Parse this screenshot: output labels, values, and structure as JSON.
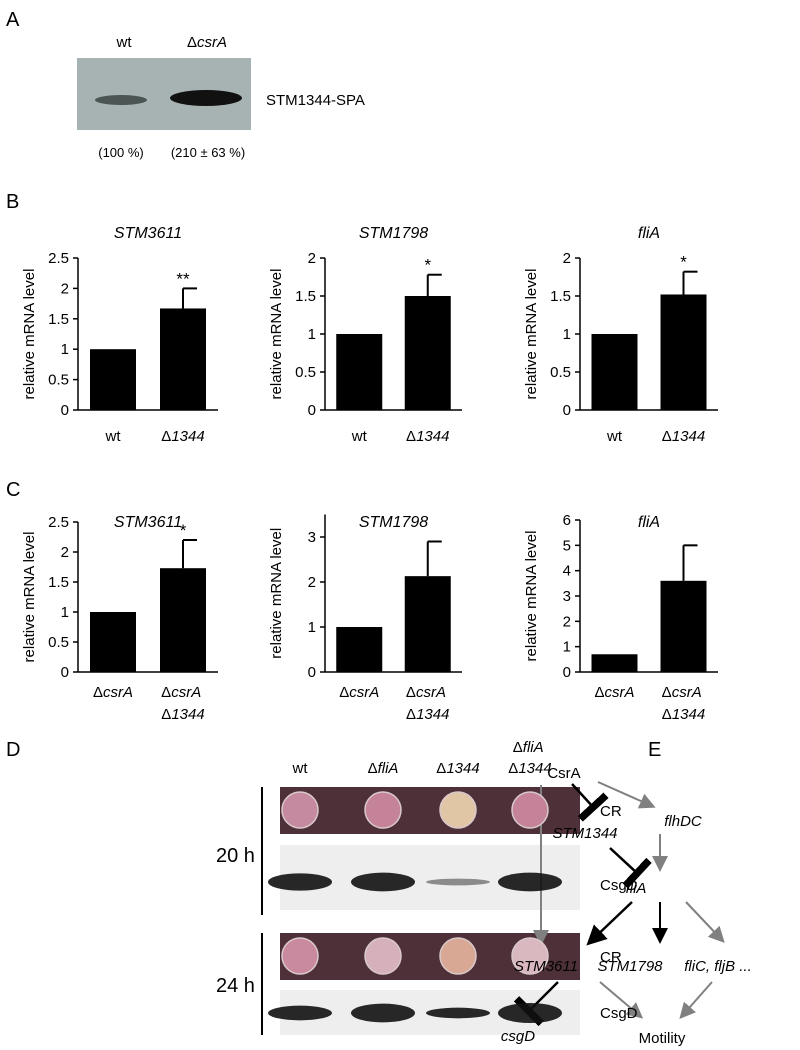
{
  "panel_letters": [
    "A",
    "B",
    "C",
    "D",
    "E"
  ],
  "panel_a": {
    "lanes": [
      "wt",
      "ΔcsrA"
    ],
    "band_label": "STM1344-SPA",
    "quantification": [
      "(100 %)",
      "(210 ± 63 %)"
    ]
  },
  "chart_data": [
    {
      "type": "bar",
      "title": "STM3611",
      "y_label": "relative mRNA level",
      "categories": [
        "wt",
        "Δ1344"
      ],
      "values": [
        1,
        1.67
      ],
      "errors": [
        null,
        0.33
      ],
      "significance": [
        null,
        "**"
      ],
      "color": "#000000",
      "ylim": [
        0,
        2.5
      ],
      "yticks": [
        0,
        0.5,
        1,
        1.5,
        2,
        2.5
      ]
    },
    {
      "type": "bar",
      "title": "STM1798",
      "y_label": "relative mRNA level",
      "categories": [
        "wt",
        "Δ1344"
      ],
      "values": [
        1,
        1.5
      ],
      "errors": [
        null,
        0.28
      ],
      "significance": [
        null,
        "*"
      ],
      "color": "#000000",
      "ylim": [
        0,
        2
      ],
      "yticks": [
        0,
        0.5,
        1,
        1.5,
        2
      ]
    },
    {
      "type": "bar",
      "title": "fliA",
      "y_label": "relative mRNA level",
      "categories": [
        "wt",
        "Δ1344"
      ],
      "values": [
        1,
        1.52
      ],
      "errors": [
        null,
        0.3
      ],
      "significance": [
        null,
        "*"
      ],
      "color": "#000000",
      "ylim": [
        0,
        2
      ],
      "yticks": [
        0,
        0.5,
        1,
        1.5,
        2
      ]
    },
    {
      "type": "bar",
      "title": "STM3611",
      "y_label": "relative mRNA level",
      "categories": [
        "ΔcsrA",
        "ΔcsrA Δ1344"
      ],
      "values": [
        1,
        1.73
      ],
      "errors": [
        null,
        0.47
      ],
      "significance": [
        null,
        "*"
      ],
      "color": "#000000",
      "ylim": [
        0,
        2.5
      ],
      "yticks": [
        0,
        0.5,
        1,
        1.5,
        2,
        2.5
      ]
    },
    {
      "type": "bar",
      "title": "STM1798",
      "y_label": "relative mRNA level",
      "categories": [
        "ΔcsrA",
        "ΔcsrA Δ1344"
      ],
      "values": [
        1,
        2.13
      ],
      "errors": [
        null,
        0.77
      ],
      "color": "#000000",
      "ylim": [
        0,
        3.5
      ],
      "yticks": [
        0,
        1,
        2,
        3
      ]
    },
    {
      "type": "bar",
      "title": "fliA",
      "y_label": "relative mRNA level",
      "categories": [
        "ΔcsrA",
        "ΔcsrA Δ1344"
      ],
      "values": [
        0.7,
        3.6
      ],
      "errors": [
        null,
        1.4
      ],
      "color": "#000000",
      "ylim": [
        0,
        6
      ],
      "yticks": [
        0,
        1,
        2,
        3,
        4,
        5,
        6
      ]
    }
  ],
  "panel_d": {
    "strains": [
      "wt",
      "ΔfliA",
      "Δ1344",
      "ΔfliA Δ1344"
    ],
    "times": [
      "20 h",
      "24 h"
    ],
    "rows": [
      "CR",
      "CsgD"
    ]
  },
  "panel_e": {
    "nodes": [
      "CsrA",
      "STM1344",
      "flhDC",
      "fliA",
      "STM3611",
      "STM1798",
      "fliC, fljB ...",
      "csgD",
      "Motility"
    ]
  }
}
